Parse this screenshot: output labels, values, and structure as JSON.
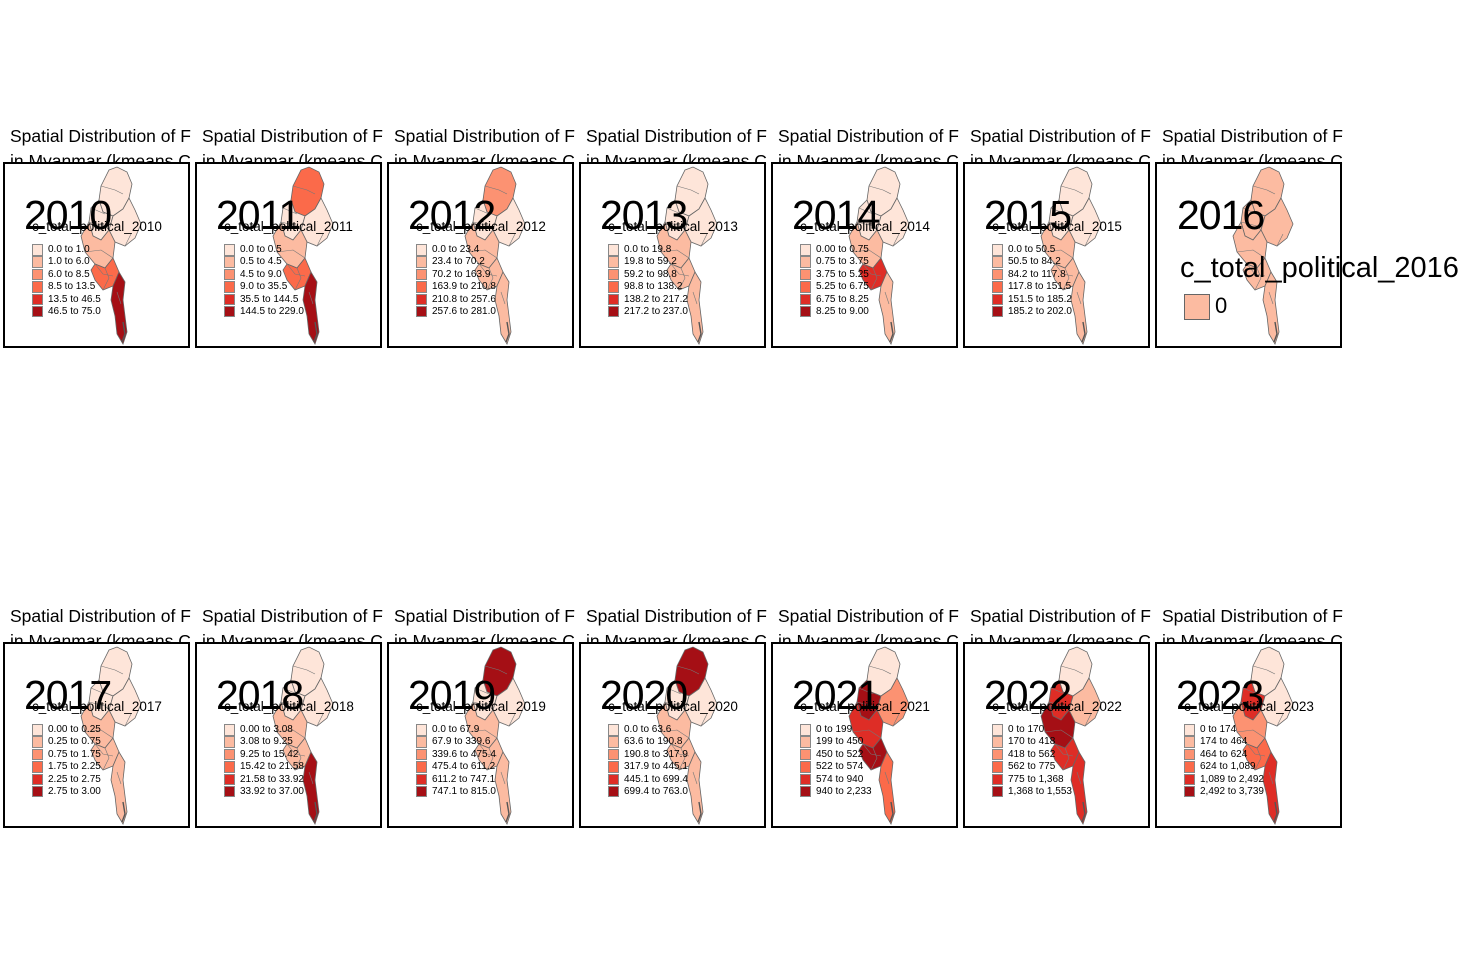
{
  "title_line1": "Spatial Distribution of F",
  "title_line2": "in Myanmar (kmeans C",
  "palette": [
    "#fee5d9",
    "#fcbba1",
    "#fc9272",
    "#fb6a4a",
    "#de2d26",
    "#a50f15"
  ],
  "panels": [
    {
      "year": "2010",
      "legend_title": "c_total_political_2010",
      "classes": [
        "0.0 to 1.0",
        "1.0 to 6.0",
        "6.0 to 8.5",
        "8.5 to 13.5",
        "13.5 to 46.5",
        "46.5 to 75.0"
      ],
      "shading": {
        "north": 0,
        "sagaing": 0,
        "middle": 1,
        "yangon": 3,
        "south": 5,
        "east": 0
      }
    },
    {
      "year": "2011",
      "legend_title": "c_total_political_2011",
      "classes": [
        "0.0 to 0.5",
        "0.5 to 4.5",
        "4.5 to 9.0",
        "9.0 to 35.5",
        "35.5 to 144.5",
        "144.5 to 229.0"
      ],
      "shading": {
        "north": 3,
        "sagaing": 0,
        "middle": 1,
        "yangon": 3,
        "south": 5,
        "east": 0
      }
    },
    {
      "year": "2012",
      "legend_title": "c_total_political_2012",
      "classes": [
        "0.0 to 23.4",
        "23.4 to 70.2",
        "70.2 to 163.9",
        "163.9 to 210.8",
        "210.8 to 257.6",
        "257.6 to 281.0"
      ],
      "shading": {
        "north": 2,
        "sagaing": 0,
        "middle": 1,
        "yangon": 1,
        "south": 1,
        "east": 0
      }
    },
    {
      "year": "2013",
      "legend_title": "c_total_political_2013",
      "classes": [
        "0.0 to 19.8",
        "19.8 to 59.2",
        "59.2 to 98.8",
        "98.8 to 138.2",
        "138.2 to 217.2",
        "217.2 to 237.0"
      ],
      "shading": {
        "north": 0,
        "sagaing": 0,
        "middle": 1,
        "yangon": 1,
        "south": 1,
        "east": 0
      }
    },
    {
      "year": "2014",
      "legend_title": "c_total_political_2014",
      "classes": [
        "0.00 to 0.75",
        "0.75 to 3.75",
        "3.75 to 5.25",
        "5.25 to 6.75",
        "6.75 to 8.25",
        "8.25 to 9.00"
      ],
      "shading": {
        "north": 0,
        "sagaing": 0,
        "middle": 1,
        "yangon": 4,
        "south": 1,
        "east": 0
      }
    },
    {
      "year": "2015",
      "legend_title": "c_total_political_2015",
      "classes": [
        "0.0 to 50.5",
        "50.5 to 84.2",
        "84.2 to 117.8",
        "117.8 to 151.5",
        "151.5 to 185.2",
        "185.2 to 202.0"
      ],
      "shading": {
        "north": 0,
        "sagaing": 0,
        "middle": 1,
        "yangon": 1,
        "south": 1,
        "east": 0
      }
    },
    {
      "year": "2016",
      "legend_title": "c_total_political_2016",
      "single": true,
      "classes": [
        "0"
      ],
      "shading": {
        "north": 1,
        "sagaing": 1,
        "middle": 1,
        "yangon": 1,
        "south": 1,
        "east": 1
      }
    },
    {
      "year": "2017",
      "legend_title": "c_total_political_2017",
      "classes": [
        "0.00 to 0.25",
        "0.25 to 0.75",
        "0.75 to 1.75",
        "1.75 to 2.25",
        "2.25 to 2.75",
        "2.75 to 3.00"
      ],
      "shading": {
        "north": 0,
        "sagaing": 0,
        "middle": 1,
        "yangon": 1,
        "south": 1,
        "east": 0
      }
    },
    {
      "year": "2018",
      "legend_title": "c_total_political_2018",
      "classes": [
        "0.00 to 3.08",
        "3.08 to 9.25",
        "9.25 to 15.42",
        "15.42 to 21.58",
        "21.58 to 33.92",
        "33.92 to 37.00"
      ],
      "shading": {
        "north": 0,
        "sagaing": 0,
        "middle": 1,
        "yangon": 1,
        "south": 5,
        "east": 0
      }
    },
    {
      "year": "2019",
      "legend_title": "c_total_political_2019",
      "classes": [
        "0.0 to 67.9",
        "67.9 to 339.6",
        "339.6 to 475.4",
        "475.4 to 611.2",
        "611.2 to 747.1",
        "747.1 to 815.0"
      ],
      "shading": {
        "north": 5,
        "sagaing": 0,
        "middle": 1,
        "yangon": 1,
        "south": 1,
        "east": 0
      }
    },
    {
      "year": "2020",
      "legend_title": "c_total_political_2020",
      "classes": [
        "0.0 to 63.6",
        "63.6 to 190.8",
        "190.8 to 317.9",
        "317.9 to 445.1",
        "445.1 to 699.4",
        "699.4 to 763.0"
      ],
      "shading": {
        "north": 5,
        "sagaing": 0,
        "middle": 1,
        "yangon": 1,
        "south": 1,
        "east": 0
      }
    },
    {
      "year": "2021",
      "legend_title": "c_total_political_2021",
      "classes": [
        "0 to 199",
        "199 to 450",
        "450 to 522",
        "522 to 574",
        "574 to 940",
        "940 to 2,233"
      ],
      "shading": {
        "north": 0,
        "sagaing": 5,
        "middle": 4,
        "yangon": 5,
        "south": 3,
        "east": 2
      }
    },
    {
      "year": "2022",
      "legend_title": "c_total_political_2022",
      "classes": [
        "0 to 170",
        "170 to 418",
        "418 to 562",
        "562 to 775",
        "775 to 1,368",
        "1,368 to 1,553"
      ],
      "shading": {
        "north": 0,
        "sagaing": 4,
        "middle": 5,
        "yangon": 4,
        "south": 4,
        "east": 1
      }
    },
    {
      "year": "2023",
      "legend_title": "c_total_political_2023",
      "classes": [
        "0 to 174",
        "174 to 464",
        "464 to 624",
        "624 to 1,089",
        "1,089 to 2,492",
        "2,492 to 3,739"
      ],
      "shading": {
        "north": 0,
        "sagaing": 4,
        "middle": 2,
        "yangon": 3,
        "south": 4,
        "east": 0
      }
    }
  ]
}
